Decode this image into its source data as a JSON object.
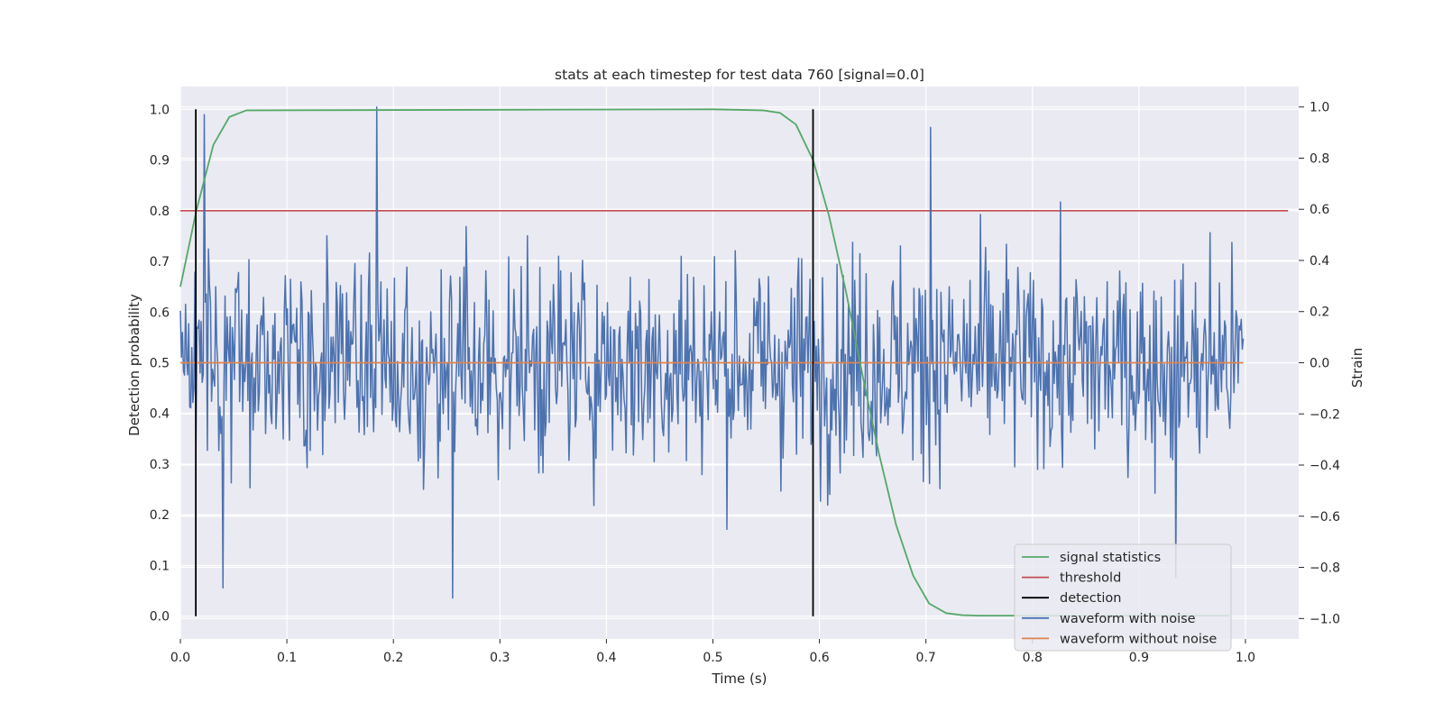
{
  "chart_data": {
    "type": "line",
    "title": "stats at each timestep for test data 760 [signal=0.0]",
    "xlabel": "Time (s)",
    "ylabel": "Detection probability",
    "y2label": "Strain",
    "xlim": [
      0.0,
      1.05
    ],
    "ylim": [
      -0.045,
      1.045
    ],
    "y2lim": [
      -1.08,
      1.08
    ],
    "xticks": [
      "0.0",
      "0.1",
      "0.2",
      "0.3",
      "0.4",
      "0.5",
      "0.6",
      "0.7",
      "0.8",
      "0.9",
      "1.0"
    ],
    "yticks": [
      "0.0",
      "0.1",
      "0.2",
      "0.3",
      "0.4",
      "0.5",
      "0.6",
      "0.7",
      "0.8",
      "0.9",
      "1.0"
    ],
    "y2ticks": [
      "−1.0",
      "−0.8",
      "−0.6",
      "−0.4",
      "−0.2",
      "0.0",
      "0.2",
      "0.4",
      "0.6",
      "0.8",
      "1.0"
    ],
    "grid": true,
    "legend_position": "lower right",
    "colors": {
      "signal": "#55a868",
      "threshold": "#c44e52",
      "detection": "#000000",
      "noisy": "#4c72b0",
      "clean": "#dd8452",
      "background": "#eaeaf2",
      "grid": "#ffffff"
    },
    "series": [
      {
        "name": "signal statistics",
        "axis": "left",
        "x": [
          0.0,
          0.015,
          0.031,
          0.046,
          0.062,
          0.5,
          0.547,
          0.563,
          0.578,
          0.594,
          0.609,
          0.625,
          0.641,
          0.656,
          0.672,
          0.688,
          0.703,
          0.719,
          0.734,
          0.75,
          0.985
        ],
        "values": [
          0.65,
          0.8,
          0.93,
          0.985,
          0.998,
          1.0,
          0.998,
          0.993,
          0.97,
          0.9,
          0.79,
          0.64,
          0.47,
          0.32,
          0.18,
          0.08,
          0.025,
          0.006,
          0.002,
          0.001,
          0.001
        ]
      },
      {
        "name": "threshold",
        "axis": "left",
        "x": [
          0.0,
          1.04
        ],
        "values": [
          0.8,
          0.8
        ]
      },
      {
        "name": "detection",
        "axis": "left",
        "x": [
          0.0145,
          0.594
        ],
        "values": [
          1.0,
          1.0
        ]
      },
      {
        "name": "waveform with noise",
        "axis": "right",
        "x_start": 0.0,
        "x_end": 0.998,
        "amplitude_std": 0.29,
        "extremes": [
          [
            0.184,
            1.0
          ],
          [
            0.256,
            -0.92
          ],
          [
            0.04,
            -0.88
          ],
          [
            0.022,
            0.97
          ],
          [
            0.704,
            0.92
          ],
          [
            0.935,
            -0.84
          ]
        ]
      },
      {
        "name": "waveform without noise",
        "axis": "right",
        "x": [
          0.0,
          0.998
        ],
        "values": [
          0.0,
          0.0
        ]
      }
    ]
  }
}
